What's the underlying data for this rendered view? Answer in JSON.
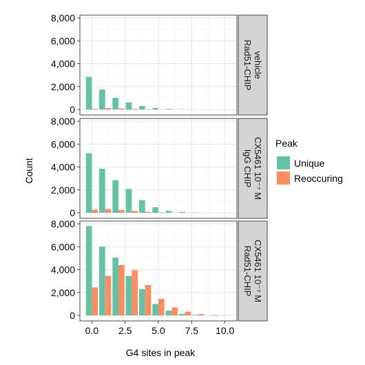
{
  "chart_data": {
    "type": "bar",
    "xlabel": "G4 sites in peak",
    "ylabel": "Count",
    "xlim": [
      -0.9,
      10.9
    ],
    "ylim": [
      0,
      8000
    ],
    "x_ticks": [
      0,
      2.5,
      5,
      7.5,
      10
    ],
    "x_tick_labels": [
      "0.0",
      "2.5",
      "5.0",
      "7.5",
      "10.0"
    ],
    "y_ticks": [
      0,
      2000,
      4000,
      6000,
      8000
    ],
    "y_tick_labels": [
      "0",
      "2,000",
      "4,000",
      "6,000",
      "8,000"
    ],
    "grid": true,
    "legend": {
      "title": "Peak",
      "position": "right",
      "entries": [
        {
          "name": "Unique",
          "color": "#66c2a5"
        },
        {
          "name": "Reoccuring",
          "color": "#fc8d62"
        }
      ]
    },
    "x": [
      0,
      1,
      2,
      3,
      4,
      5,
      6,
      7,
      8,
      9,
      10
    ],
    "facets": [
      {
        "strip_lines": [
          "Rad51-CHIP",
          "vehicle"
        ],
        "series": [
          {
            "name": "Unique",
            "values": [
              2850,
              1750,
              1020,
              620,
              300,
              130,
              50,
              20,
              5,
              2,
              0
            ]
          },
          {
            "name": "Reoccuring",
            "values": [
              60,
              120,
              90,
              60,
              30,
              10,
              5,
              2,
              0,
              0,
              0
            ]
          }
        ]
      },
      {
        "strip_lines": [
          "IgG CHIP",
          "CX5461 10⁻⁷ M"
        ],
        "series": [
          {
            "name": "Unique",
            "values": [
              5200,
              3850,
              2850,
              2080,
              1100,
              480,
              170,
              70,
              20,
              5,
              0
            ]
          },
          {
            "name": "Reoccuring",
            "values": [
              280,
              320,
              250,
              170,
              90,
              40,
              15,
              5,
              2,
              0,
              0
            ]
          }
        ]
      },
      {
        "strip_lines": [
          "Rad51-CHIP",
          "CX5461 10⁻⁷ M"
        ],
        "series": [
          {
            "name": "Unique",
            "values": [
              7800,
              6000,
              5050,
              3450,
              2300,
              1000,
              420,
              140,
              50,
              15,
              5
            ]
          },
          {
            "name": "Reoccuring",
            "values": [
              2450,
              3450,
              4400,
              3950,
              2650,
              1450,
              700,
              320,
              120,
              40,
              10
            ]
          }
        ]
      }
    ]
  }
}
